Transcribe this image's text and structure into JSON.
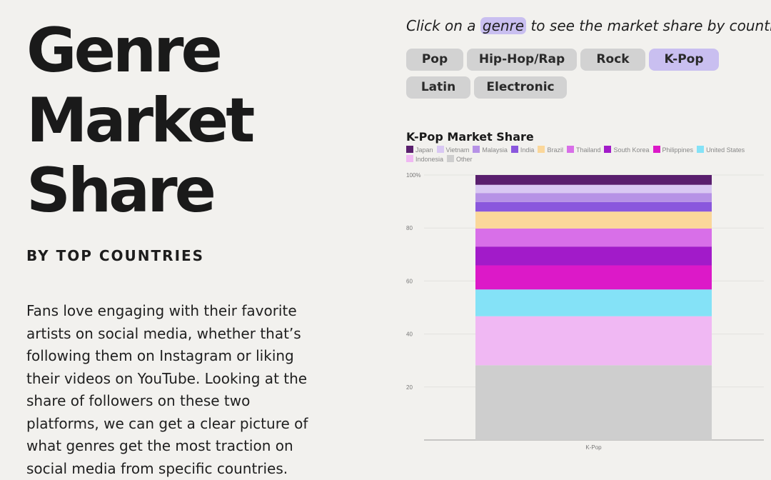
{
  "page": {
    "title_lines": [
      "Genre",
      "Market",
      "Share"
    ],
    "subtitle": "BY TOP COUNTRIES",
    "body": "Fans love engaging with their favorite artists on social media, whether that’s following them on Instagram or liking their videos on YouTube. Looking at the share of followers on these two platforms, we can get a clear picture of what genres get the most traction on social media from specific countries."
  },
  "controls": {
    "prompt_before": "Click on a",
    "prompt_highlight": "genre",
    "prompt_after": "to see the market share by country",
    "genres": [
      "Pop",
      "Hip-Hop/Rap",
      "Rock",
      "K-Pop",
      "Latin",
      "Electronic"
    ],
    "selected": "K-Pop"
  },
  "chart_data": {
    "type": "bar",
    "stacked": true,
    "title": "K-Pop Market Share",
    "categories": [
      "K-Pop"
    ],
    "ylim": [
      0,
      100
    ],
    "yticks": [
      20,
      40,
      60,
      80,
      100
    ],
    "ytick_labels": [
      "20",
      "40",
      "60",
      "80",
      "100%"
    ],
    "grid": true,
    "legend_position": "top",
    "series": [
      {
        "name": "Japan",
        "values": [
          3.7
        ],
        "color": "#5a1f6e"
      },
      {
        "name": "Vietnam",
        "values": [
          3.1
        ],
        "color": "#d9c8f3"
      },
      {
        "name": "Malaysia",
        "values": [
          3.4
        ],
        "color": "#b692e6"
      },
      {
        "name": "India",
        "values": [
          3.6
        ],
        "color": "#8a57dd"
      },
      {
        "name": "Brazil",
        "values": [
          6.4
        ],
        "color": "#fbd79a"
      },
      {
        "name": "Thailand",
        "values": [
          6.8
        ],
        "color": "#d86fe8"
      },
      {
        "name": "South Korea",
        "values": [
          7.1
        ],
        "color": "#a21bc9"
      },
      {
        "name": "Philippines",
        "values": [
          9.1
        ],
        "color": "#dc19c8"
      },
      {
        "name": "United States",
        "values": [
          10.1
        ],
        "color": "#84e2f7"
      },
      {
        "name": "Indonesia",
        "values": [
          18.5
        ],
        "color": "#f0b8f3"
      },
      {
        "name": "Other",
        "values": [
          28.2
        ],
        "color": "#cecece"
      }
    ]
  }
}
